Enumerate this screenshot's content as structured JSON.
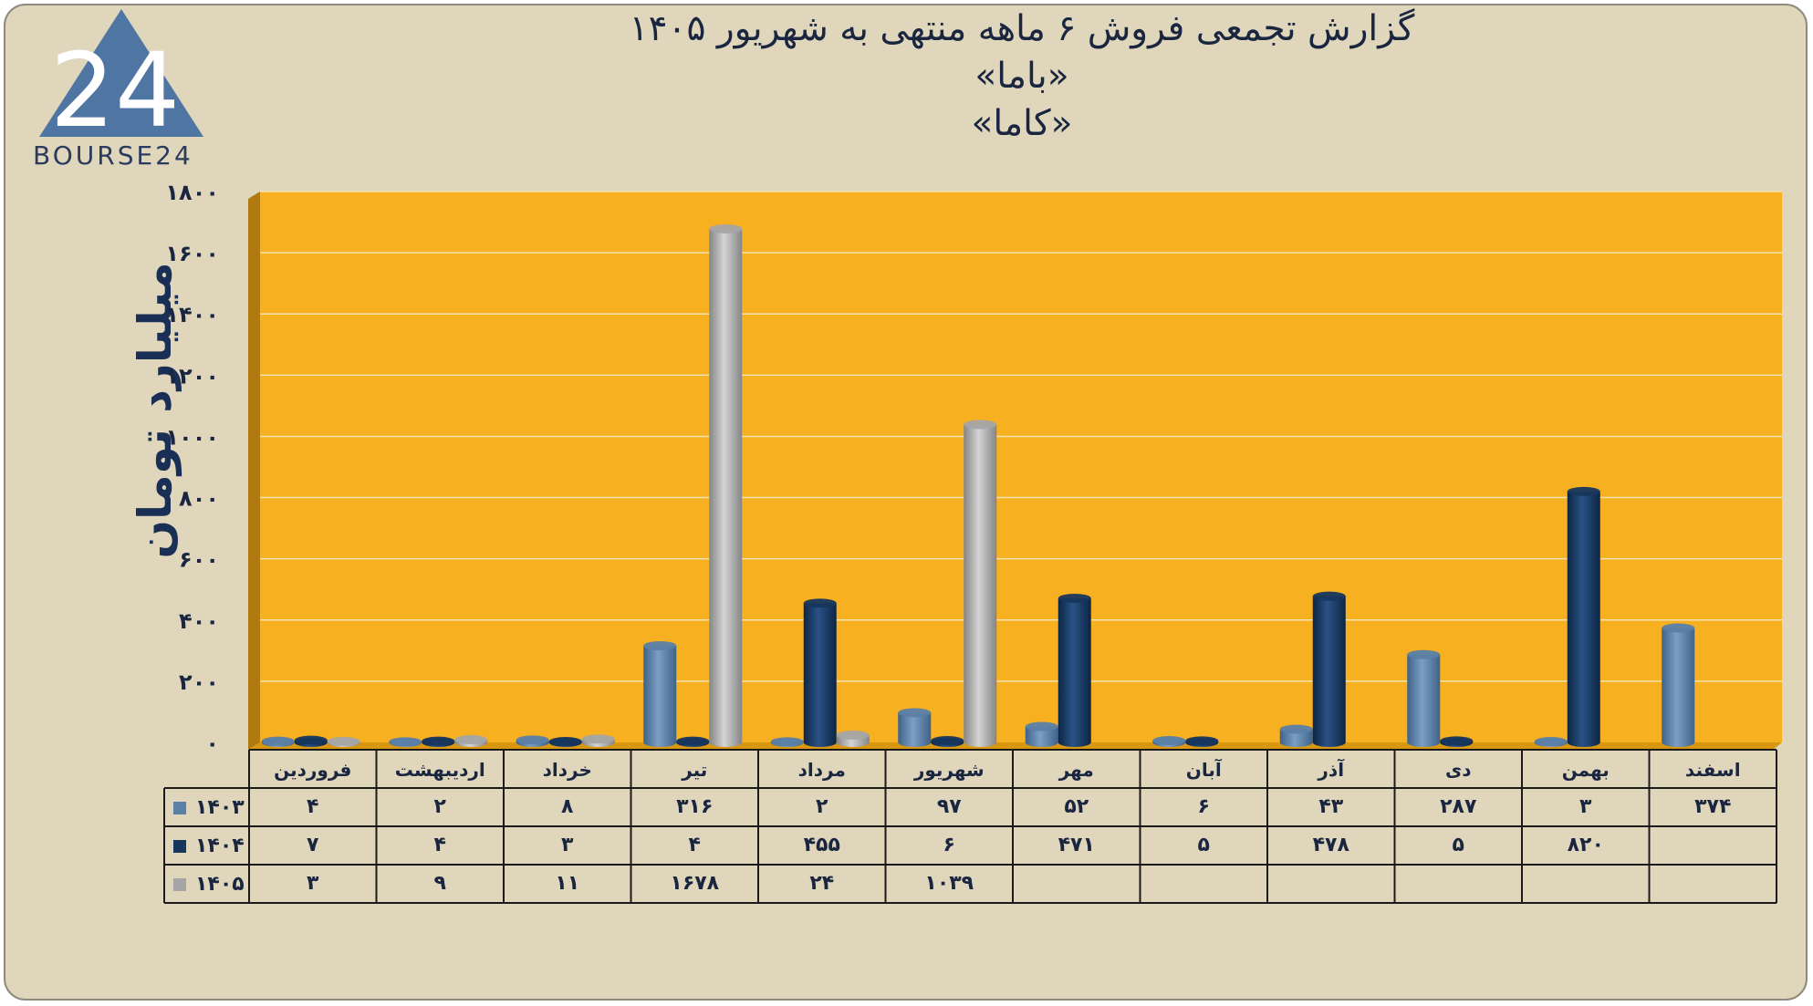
{
  "logo_text": "BOURSE24",
  "logo_mark": "24",
  "chart_data": {
    "type": "bar",
    "title": "گزارش تجمعی فروش ۶ ماهه منتهی به شهریور ۱۴۰۵",
    "subtitle_1": "«باما»",
    "subtitle_2": "«کاما»",
    "ylabel": "میلیارد تومان",
    "ylim": [
      0,
      1800
    ],
    "yticks": [
      "۰",
      "۲۰۰",
      "۴۰۰",
      "۶۰۰",
      "۸۰۰",
      "۱۰۰۰",
      "۱۲۰۰",
      "۱۴۰۰",
      "۱۶۰۰",
      "۱۸۰۰"
    ],
    "categories": [
      "فروردین",
      "اردیبهشت",
      "خرداد",
      "تیر",
      "مرداد",
      "شهریور",
      "مهر",
      "آبان",
      "آذر",
      "دی",
      "بهمن",
      "اسفند"
    ],
    "grid": true,
    "legend": "table-left",
    "series": [
      {
        "name": "۱۴۰۳",
        "color": "#5b7fa6",
        "values": [
          4,
          2,
          8,
          316,
          2,
          97,
          52,
          6,
          43,
          287,
          3,
          374
        ],
        "labels": [
          "۴",
          "۲",
          "۸",
          "۳۱۶",
          "۲",
          "۹۷",
          "۵۲",
          "۶",
          "۴۳",
          "۲۸۷",
          "۳",
          "۳۷۴"
        ]
      },
      {
        "name": "۱۴۰۴",
        "color": "#17365d",
        "values": [
          7,
          4,
          3,
          4,
          455,
          6,
          471,
          5,
          478,
          5,
          820,
          null
        ],
        "labels": [
          "۷",
          "۴",
          "۳",
          "۴",
          "۴۵۵",
          "۶",
          "۴۷۱",
          "۵",
          "۴۷۸",
          "۵",
          "۸۲۰",
          ""
        ]
      },
      {
        "name": "۱۴۰۵",
        "color": "#a5a5a5",
        "values": [
          3,
          9,
          11,
          1678,
          24,
          1039,
          null,
          null,
          null,
          null,
          null,
          null
        ],
        "labels": [
          "۳",
          "۹",
          "۱۱",
          "۱۶۷۸",
          "۲۴",
          "۱۰۳۹",
          "",
          "",
          "",
          "",
          "",
          ""
        ]
      }
    ]
  }
}
